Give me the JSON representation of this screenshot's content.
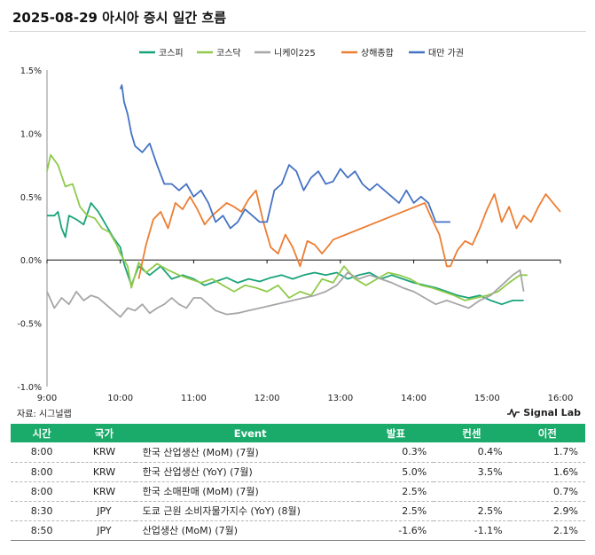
{
  "title": "2025-08-29 아시아 증시 일간 흐름",
  "source": "자료: 시그널랩",
  "brand": "Signal Lab",
  "chart_data": {
    "type": "line",
    "title": "2025-08-29 아시아 증시 일간 흐름",
    "xlabel": "",
    "ylabel": "",
    "xlim": [
      9.0,
      16.0
    ],
    "ylim": [
      -1.0,
      1.5
    ],
    "y_ticks": [
      1.5,
      1.0,
      0.5,
      0.0,
      -0.5,
      -1.0
    ],
    "y_tick_labels": [
      "1.5%",
      "1.0%",
      "0.5%",
      "0.0%",
      "-0.5%",
      "-1.0%"
    ],
    "x_ticks": [
      9,
      10,
      11,
      12,
      13,
      14,
      15,
      16
    ],
    "x_tick_labels": [
      "9:00",
      "10:00",
      "11:00",
      "12:00",
      "13:00",
      "14:00",
      "15:00",
      "16:00"
    ],
    "legend_position": "top",
    "grid": false,
    "series": [
      {
        "name": "코스피",
        "color": "#1aa37a",
        "x": [
          9.0,
          9.1,
          9.15,
          9.2,
          9.25,
          9.3,
          9.4,
          9.5,
          9.6,
          9.7,
          9.8,
          9.9,
          10.0,
          10.05,
          10.15,
          10.25,
          10.4,
          10.55,
          10.7,
          10.85,
          11.0,
          11.15,
          11.3,
          11.45,
          11.6,
          11.75,
          11.9,
          12.05,
          12.2,
          12.35,
          12.5,
          12.65,
          12.8,
          12.95,
          13.1,
          13.25,
          13.4,
          13.55,
          13.7,
          13.85,
          14.0,
          14.15,
          14.3,
          14.45,
          14.6,
          14.75,
          14.9,
          15.05,
          15.2,
          15.35,
          15.5
        ],
        "y": [
          0.35,
          0.35,
          0.38,
          0.25,
          0.18,
          0.35,
          0.32,
          0.28,
          0.45,
          0.38,
          0.28,
          0.18,
          0.1,
          -0.03,
          -0.2,
          -0.05,
          -0.12,
          -0.05,
          -0.15,
          -0.12,
          -0.15,
          -0.2,
          -0.17,
          -0.14,
          -0.18,
          -0.15,
          -0.17,
          -0.14,
          -0.12,
          -0.15,
          -0.12,
          -0.1,
          -0.12,
          -0.1,
          -0.15,
          -0.12,
          -0.1,
          -0.15,
          -0.12,
          -0.15,
          -0.18,
          -0.2,
          -0.22,
          -0.25,
          -0.28,
          -0.3,
          -0.28,
          -0.32,
          -0.35,
          -0.32,
          -0.32
        ]
      },
      {
        "name": "코스닥",
        "color": "#8fca4a",
        "x": [
          9.0,
          9.05,
          9.15,
          9.25,
          9.35,
          9.45,
          9.55,
          9.65,
          9.75,
          9.85,
          9.95,
          10.0,
          10.1,
          10.15,
          10.25,
          10.35,
          10.5,
          10.65,
          10.8,
          10.95,
          11.1,
          11.25,
          11.4,
          11.55,
          11.7,
          11.85,
          12.0,
          12.15,
          12.3,
          12.45,
          12.6,
          12.75,
          12.9,
          13.05,
          13.2,
          13.35,
          13.5,
          13.65,
          13.8,
          13.95,
          14.1,
          14.25,
          14.4,
          14.55,
          14.7,
          14.85,
          15.0,
          15.15,
          15.3,
          15.45,
          15.55
        ],
        "y": [
          0.7,
          0.83,
          0.75,
          0.58,
          0.6,
          0.42,
          0.35,
          0.33,
          0.25,
          0.22,
          0.12,
          0.05,
          -0.05,
          -0.22,
          -0.02,
          -0.1,
          -0.03,
          -0.08,
          -0.12,
          -0.15,
          -0.18,
          -0.15,
          -0.2,
          -0.25,
          -0.2,
          -0.22,
          -0.25,
          -0.2,
          -0.3,
          -0.25,
          -0.28,
          -0.15,
          -0.18,
          -0.05,
          -0.15,
          -0.2,
          -0.15,
          -0.1,
          -0.12,
          -0.15,
          -0.2,
          -0.22,
          -0.25,
          -0.28,
          -0.32,
          -0.3,
          -0.28,
          -0.25,
          -0.18,
          -0.12,
          -0.12
        ]
      },
      {
        "name": "니케이225",
        "color": "#a6a6a6",
        "x": [
          9.0,
          9.1,
          9.2,
          9.3,
          9.4,
          9.5,
          9.6,
          9.7,
          9.8,
          9.9,
          10.0,
          10.1,
          10.2,
          10.3,
          10.4,
          10.5,
          10.6,
          10.7,
          10.8,
          10.9,
          11.0,
          11.1,
          11.2,
          11.3,
          11.45,
          11.6,
          11.75,
          11.9,
          12.05,
          12.2,
          12.35,
          12.5,
          12.65,
          12.8,
          12.95,
          13.1,
          13.25,
          13.4,
          13.55,
          13.7,
          13.85,
          14.0,
          14.15,
          14.3,
          14.45,
          14.6,
          14.75,
          14.9,
          15.05,
          15.2,
          15.35,
          15.45,
          15.5
        ],
        "y": [
          -0.25,
          -0.38,
          -0.3,
          -0.35,
          -0.25,
          -0.32,
          -0.28,
          -0.3,
          -0.35,
          -0.4,
          -0.45,
          -0.38,
          -0.4,
          -0.35,
          -0.42,
          -0.38,
          -0.35,
          -0.3,
          -0.35,
          -0.38,
          -0.3,
          -0.3,
          -0.35,
          -0.4,
          -0.43,
          -0.42,
          -0.4,
          -0.38,
          -0.36,
          -0.34,
          -0.32,
          -0.3,
          -0.28,
          -0.25,
          -0.2,
          -0.1,
          -0.15,
          -0.12,
          -0.15,
          -0.18,
          -0.22,
          -0.25,
          -0.3,
          -0.35,
          -0.32,
          -0.35,
          -0.38,
          -0.32,
          -0.28,
          -0.2,
          -0.12,
          -0.08,
          -0.25
        ]
      },
      {
        "name": "상해종합",
        "color": "#ed7d31",
        "x": [
          10.25,
          10.35,
          10.45,
          10.55,
          10.65,
          10.75,
          10.85,
          10.95,
          11.05,
          11.15,
          11.25,
          11.35,
          11.45,
          11.55,
          11.65,
          11.75,
          11.85,
          11.95,
          12.05,
          12.15,
          12.25,
          12.35,
          12.45,
          12.55,
          12.65,
          12.75,
          12.85,
          12.9,
          14.15,
          14.25,
          14.35,
          14.45,
          14.5,
          14.6,
          14.7,
          14.8,
          14.9,
          15.0,
          15.1,
          15.2,
          15.3,
          15.4,
          15.5,
          15.6,
          15.7,
          15.8,
          15.9,
          16.0
        ],
        "y": [
          -0.15,
          0.12,
          0.32,
          0.38,
          0.25,
          0.45,
          0.4,
          0.5,
          0.4,
          0.28,
          0.35,
          0.4,
          0.45,
          0.42,
          0.38,
          0.48,
          0.55,
          0.3,
          0.1,
          0.05,
          0.2,
          0.1,
          -0.05,
          0.15,
          0.12,
          0.05,
          0.12,
          0.16,
          0.45,
          0.32,
          0.2,
          -0.05,
          -0.05,
          0.08,
          0.15,
          0.12,
          0.25,
          0.4,
          0.52,
          0.3,
          0.42,
          0.25,
          0.35,
          0.3,
          0.42,
          0.52,
          0.45,
          0.38
        ]
      },
      {
        "name": "대만 가권",
        "color": "#4472c4",
        "x": [
          10.0,
          10.02,
          10.05,
          10.1,
          10.15,
          10.2,
          10.3,
          10.4,
          10.5,
          10.6,
          10.7,
          10.8,
          10.9,
          11.0,
          11.1,
          11.2,
          11.3,
          11.4,
          11.5,
          11.6,
          11.7,
          11.8,
          11.9,
          12.0,
          12.1,
          12.2,
          12.3,
          12.4,
          12.5,
          12.6,
          12.7,
          12.8,
          12.9,
          13.0,
          13.1,
          13.2,
          13.3,
          13.4,
          13.5,
          13.6,
          13.7,
          13.8,
          13.9,
          14.0,
          14.1,
          14.2,
          14.3,
          14.4,
          14.5
        ],
        "y": [
          1.35,
          1.38,
          1.25,
          1.15,
          1.0,
          0.9,
          0.85,
          0.92,
          0.75,
          0.6,
          0.6,
          0.55,
          0.6,
          0.5,
          0.55,
          0.45,
          0.3,
          0.35,
          0.25,
          0.3,
          0.4,
          0.35,
          0.3,
          0.3,
          0.55,
          0.6,
          0.75,
          0.7,
          0.55,
          0.65,
          0.7,
          0.6,
          0.62,
          0.72,
          0.65,
          0.7,
          0.6,
          0.55,
          0.6,
          0.55,
          0.5,
          0.45,
          0.55,
          0.45,
          0.5,
          0.45,
          0.3,
          0.3,
          0.3
        ]
      }
    ]
  },
  "table": {
    "headers": {
      "time": "시간",
      "country": "국가",
      "event": "Event",
      "actual": "발표",
      "consensus": "컨센",
      "previous": "이전"
    },
    "rows": [
      {
        "time": "8:00",
        "country": "KRW",
        "event": "한국 산업생산 (MoM) (7월)",
        "actual": "0.3%",
        "consensus": "0.4%",
        "previous": "1.7%"
      },
      {
        "time": "8:00",
        "country": "KRW",
        "event": "한국 산업생산 (YoY) (7월)",
        "actual": "5.0%",
        "consensus": "3.5%",
        "previous": "1.6%"
      },
      {
        "time": "8:00",
        "country": "KRW",
        "event": "한국 소매판매 (MoM) (7월)",
        "actual": "2.5%",
        "consensus": "",
        "previous": "0.7%"
      },
      {
        "time": "8:30",
        "country": "JPY",
        "event": "도쿄 근원 소비자물가지수 (YoY) (8월)",
        "actual": "2.5%",
        "consensus": "2.5%",
        "previous": "2.9%"
      },
      {
        "time": "8:50",
        "country": "JPY",
        "event": "산업생산 (MoM) (7월)",
        "actual": "-1.6%",
        "consensus": "-1.1%",
        "previous": "2.1%"
      }
    ]
  }
}
